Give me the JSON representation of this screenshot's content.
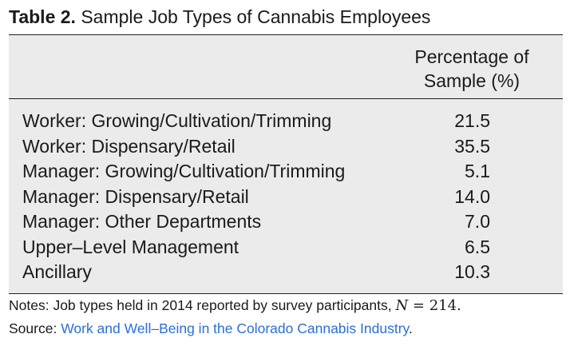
{
  "caption": {
    "label": "Table 2.",
    "text": "Sample Job Types of Cannabis Employees"
  },
  "header": {
    "line1": "Percentage of",
    "line2": "Sample (%)"
  },
  "rows": [
    {
      "label": "Worker: Growing/Cultivation/Trimming",
      "value": "21.5"
    },
    {
      "label": "Worker: Dispensary/Retail",
      "value": "35.5"
    },
    {
      "label": "Manager: Growing/Cultivation/Trimming",
      "value": "5.1"
    },
    {
      "label": "Manager: Dispensary/Retail",
      "value": "14.0"
    },
    {
      "label": "Manager: Other Departments",
      "value": "7.0"
    },
    {
      "label": "Upper–Level Management",
      "value": "6.5"
    },
    {
      "label": "Ancillary",
      "value": "10.3"
    }
  ],
  "notes": {
    "text": "Notes: Job types held in 2014 reported by survey participants, ",
    "n_var": "N",
    "n_eq": " = 214",
    "n_end": "."
  },
  "source": {
    "prefix": "Source: ",
    "link_text": "Work and Well–Being in the Colorado Cannabis Industry",
    "suffix": "."
  },
  "colors": {
    "table_background": "#ebebeb",
    "link": "#2b6fd6"
  }
}
